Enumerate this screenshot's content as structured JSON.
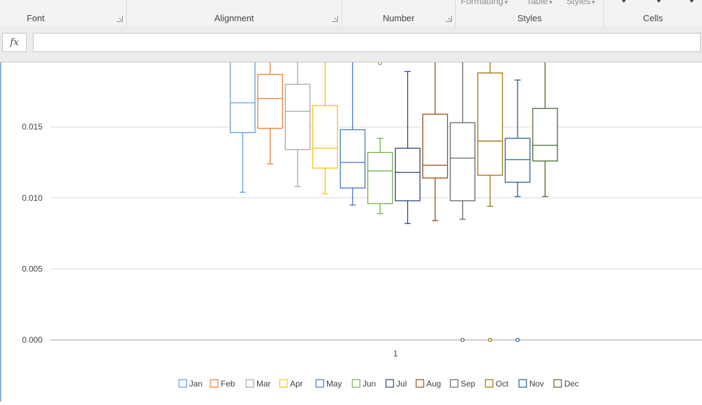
{
  "ribbon": {
    "cut_labels": [
      "Formatting",
      "Table",
      "Styles"
    ],
    "groups": [
      {
        "label": "Font",
        "launcher": true
      },
      {
        "label": "Alignment",
        "launcher": true
      },
      {
        "label": "Number",
        "launcher": true
      },
      {
        "label": "Styles",
        "launcher": false
      },
      {
        "label": "Cells",
        "launcher": false
      }
    ]
  },
  "formula_bar": {
    "fx_label": "fx",
    "value": ""
  },
  "chart_data": {
    "type": "box",
    "categories": [
      "1"
    ],
    "ylim": [
      0,
      0.0195
    ],
    "y_ticks": [
      "0.000",
      "0.005",
      "0.010",
      "0.015"
    ],
    "grid": true,
    "legend_position": "bottom",
    "series": [
      {
        "name": "Jan",
        "color": "#5b9bd5",
        "min": 0.0104,
        "q1": 0.0146,
        "median": 0.0167,
        "q3": 0.0196,
        "max": 0.0196,
        "outliers": []
      },
      {
        "name": "Feb",
        "color": "#ed7d31",
        "min": 0.0124,
        "q1": 0.0149,
        "median": 0.017,
        "q3": 0.0187,
        "max": 0.0196,
        "outliers": []
      },
      {
        "name": "Mar",
        "color": "#a5a5a5",
        "min": 0.0108,
        "q1": 0.0134,
        "median": 0.0161,
        "q3": 0.018,
        "max": 0.0196,
        "outliers": []
      },
      {
        "name": "Apr",
        "color": "#ffc000",
        "min": 0.0103,
        "q1": 0.0121,
        "median": 0.0135,
        "q3": 0.0165,
        "max": 0.0196,
        "outliers": []
      },
      {
        "name": "May",
        "color": "#4472c4",
        "min": 0.0095,
        "q1": 0.0107,
        "median": 0.0125,
        "q3": 0.0148,
        "max": 0.0196,
        "outliers": []
      },
      {
        "name": "Jun",
        "color": "#70ad47",
        "min": 0.0089,
        "q1": 0.0096,
        "median": 0.0119,
        "q3": 0.0132,
        "max": 0.0142,
        "outliers": [
          0.0195
        ]
      },
      {
        "name": "Jul",
        "color": "#264478",
        "min": 0.0082,
        "q1": 0.0098,
        "median": 0.0118,
        "q3": 0.0135,
        "max": 0.0189,
        "outliers": []
      },
      {
        "name": "Aug",
        "color": "#9e480e",
        "min": 0.0084,
        "q1": 0.0114,
        "median": 0.0123,
        "q3": 0.0159,
        "max": 0.0196,
        "outliers": []
      },
      {
        "name": "Sep",
        "color": "#636363",
        "min": 0.0085,
        "q1": 0.0098,
        "median": 0.0128,
        "q3": 0.0153,
        "max": 0.0196,
        "outliers": [
          0.0
        ]
      },
      {
        "name": "Oct",
        "color": "#997300",
        "min": 0.0094,
        "q1": 0.0116,
        "median": 0.014,
        "q3": 0.0188,
        "max": 0.0196,
        "outliers": [
          0.0
        ]
      },
      {
        "name": "Nov",
        "color": "#255e91",
        "min": 0.0101,
        "q1": 0.0111,
        "median": 0.0127,
        "q3": 0.0142,
        "max": 0.0183,
        "outliers": [
          0.0
        ]
      },
      {
        "name": "Dec",
        "color": "#43682b",
        "min": 0.0101,
        "q1": 0.0126,
        "median": 0.0137,
        "q3": 0.0163,
        "max": 0.0196,
        "outliers": []
      }
    ]
  }
}
